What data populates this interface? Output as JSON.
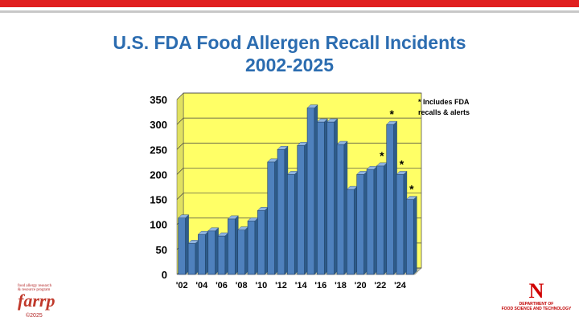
{
  "slide": {
    "title_line1": "U.S. FDA Food Allergen Recall Incidents",
    "title_line2": "2002-2025",
    "note_line1": "* Includes FDA",
    "note_line2": "recalls & alerts",
    "farrp_text_line1": "food allergy research",
    "farrp_text_line2": "& resource program",
    "farrp_logo": "farrp",
    "copyright": "©2025",
    "unl_logo": "N",
    "unl_dept_line1": "DEPARTMENT OF",
    "unl_dept_line2": "FOOD SCIENCE AND TECHNOLOGY"
  },
  "colors": {
    "brand_red": "#e01e1e",
    "title_blue": "#2b6cb0",
    "plot_background": "#ffff66",
    "bar_fill": "#4f81bd"
  },
  "chart_data": {
    "type": "bar",
    "title": "U.S. FDA Food Allergen Recall Incidents 2002-2025",
    "categories": [
      "2002",
      "2003",
      "2004",
      "2005",
      "2006",
      "2007",
      "2008",
      "2009",
      "2010",
      "2011",
      "2012",
      "2013",
      "2014",
      "2015",
      "2016",
      "2017",
      "2018",
      "2019",
      "2020",
      "2021",
      "2022",
      "2023",
      "2024",
      "2025"
    ],
    "x_tick_labels": [
      "'02",
      "'04",
      "'06",
      "'08",
      "'10",
      "'12",
      "'14",
      "'16",
      "'18",
      "'20",
      "'22",
      "'24"
    ],
    "values": [
      113,
      62,
      80,
      87,
      77,
      111,
      89,
      107,
      128,
      225,
      250,
      200,
      258,
      333,
      305,
      305,
      260,
      170,
      200,
      210,
      217,
      300,
      200,
      150
    ],
    "asterisks": [
      "",
      "",
      "",
      "",
      "",
      "",
      "",
      "",
      "",
      "",
      "",
      "",
      "",
      "",
      "",
      "",
      "",
      "",
      "",
      "",
      "*",
      "*",
      "*",
      "*"
    ],
    "ylim": [
      0,
      350
    ],
    "yticks": [
      0,
      50,
      100,
      150,
      200,
      250,
      300,
      350
    ],
    "grid": true,
    "xlabel": "",
    "ylabel": ""
  }
}
